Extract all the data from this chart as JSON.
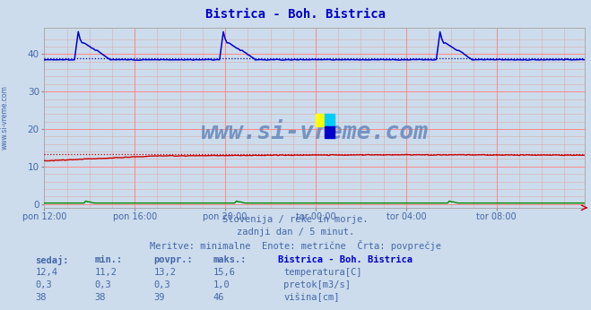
{
  "title": "Bistrica - Boh. Bistrica",
  "title_color": "#0000cc",
  "bg_color": "#ccdcec",
  "plot_bg_color": "#ccdcec",
  "grid_color_major": "#ff8888",
  "grid_color_minor": "#ddaaaa",
  "ylabel_color": "#4466aa",
  "xlabel_color": "#4466aa",
  "xticklabels": [
    "pon 12:00",
    "pon 16:00",
    "pon 20:00",
    "tor 00:00",
    "tor 04:00",
    "tor 08:00"
  ],
  "xtick_positions": [
    0,
    48,
    96,
    144,
    192,
    240
  ],
  "yticks": [
    0,
    10,
    20,
    30,
    40
  ],
  "ylim": [
    -1,
    47
  ],
  "xlim": [
    0,
    287
  ],
  "n_points": 288,
  "temp_color": "#cc0000",
  "flow_color": "#008800",
  "level_color": "#0000cc",
  "avg_temp": 13.2,
  "avg_flow": 0.3,
  "avg_level": 39.0,
  "subtitle1": "Slovenija / reke in morje.",
  "subtitle2": "zadnji dan / 5 minut.",
  "subtitle3": "Meritve: minimalne  Enote: metrične  Črta: povprečje",
  "subtitle_color": "#4466aa",
  "legend_title": "Bistrica - Boh. Bistrica",
  "legend_title_color": "#0000cc",
  "legend_items": [
    {
      "label": "temperatura[C]",
      "color": "#cc0000"
    },
    {
      "label": "pretok[m3/s]",
      "color": "#008800"
    },
    {
      "label": "višina[cm]",
      "color": "#0000cc"
    }
  ],
  "table_headers": [
    "sedaj:",
    "min.:",
    "povpr.:",
    "maks.:"
  ],
  "table_data": [
    [
      "12,4",
      "11,2",
      "13,2",
      "15,6"
    ],
    [
      "0,3",
      "0,3",
      "0,3",
      "1,0"
    ],
    [
      "38",
      "38",
      "39",
      "46"
    ]
  ],
  "table_color": "#4466aa",
  "watermark": "www.si-vreme.com",
  "watermark_color": "#6688bb",
  "sidebar_text": "www.si-vreme.com",
  "sidebar_color": "#4466aa"
}
